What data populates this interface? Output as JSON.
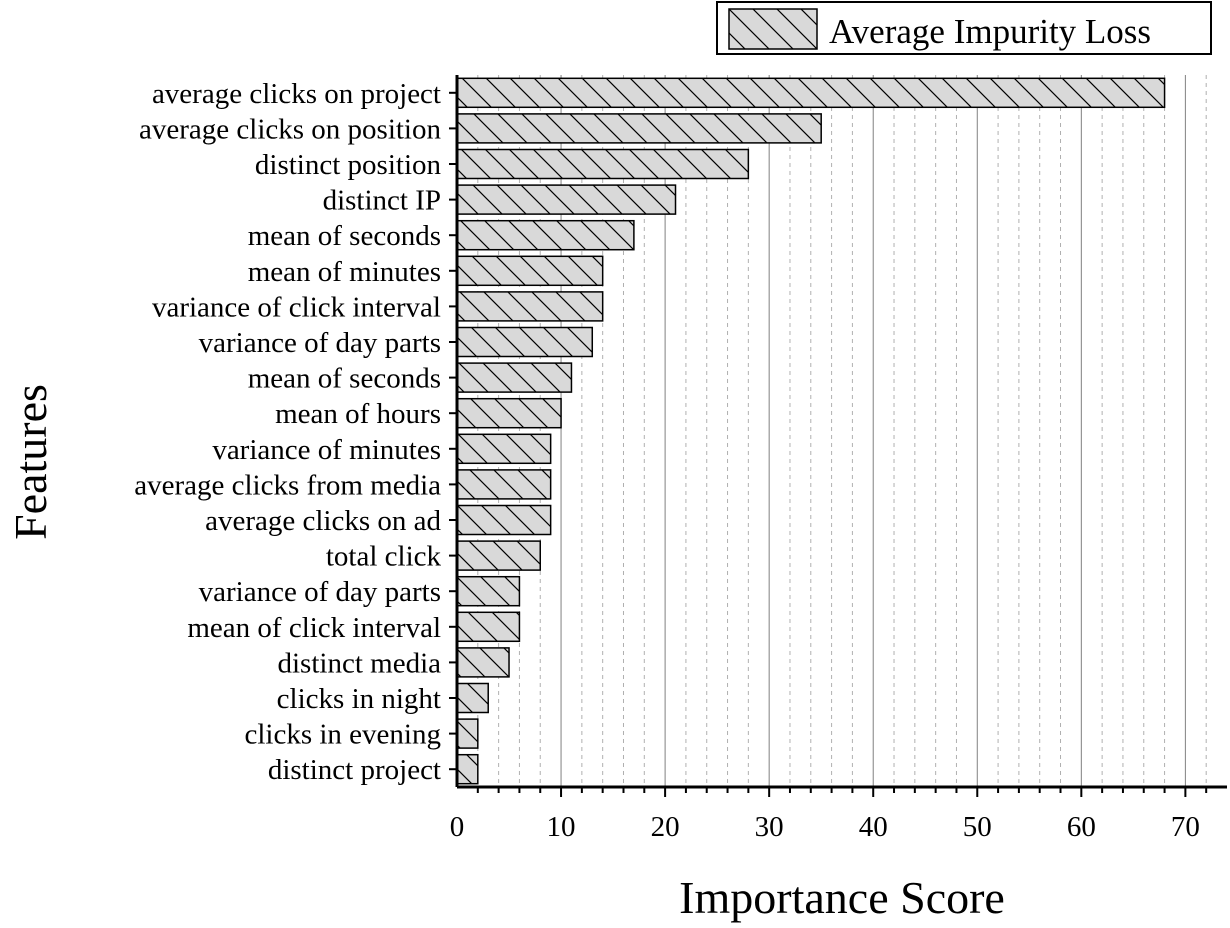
{
  "chart_data": {
    "type": "bar",
    "orientation": "horizontal",
    "categories": [
      "average clicks on project",
      "average clicks on position",
      "distinct position",
      "distinct IP",
      "mean of seconds",
      "mean of minutes",
      "variance of click interval",
      "variance of day parts",
      "mean of seconds",
      "mean of hours",
      "variance of minutes",
      "average clicks from media",
      "average clicks on ad",
      "total click",
      "variance of day parts",
      "mean of click interval",
      "distinct media",
      "clicks in night",
      "clicks in evening",
      "distinct project"
    ],
    "series": [
      {
        "name": "Average Impurity Loss",
        "values": [
          68,
          35,
          28,
          21,
          17,
          14,
          14,
          13,
          11,
          10,
          9,
          9,
          9,
          8,
          6,
          6,
          5,
          3,
          2,
          2
        ]
      }
    ],
    "xlabel": "Importance Score",
    "ylabel": "Features",
    "xlim": [
      0,
      74
    ],
    "xticks": [
      0,
      10,
      20,
      30,
      40,
      50,
      60,
      70
    ],
    "xtick_labels": [
      "0",
      "10",
      "20",
      "30",
      "40",
      "50",
      "60",
      "70"
    ],
    "grid": "vertical major solid, minor dashed",
    "legend": "top-right",
    "colors": {
      "bar_fill": "#d9d9d9",
      "bar_hatch": "#000000",
      "bar_stroke": "#000000",
      "grid_major": "#808080",
      "grid_minor": "#b0b0b0"
    }
  }
}
